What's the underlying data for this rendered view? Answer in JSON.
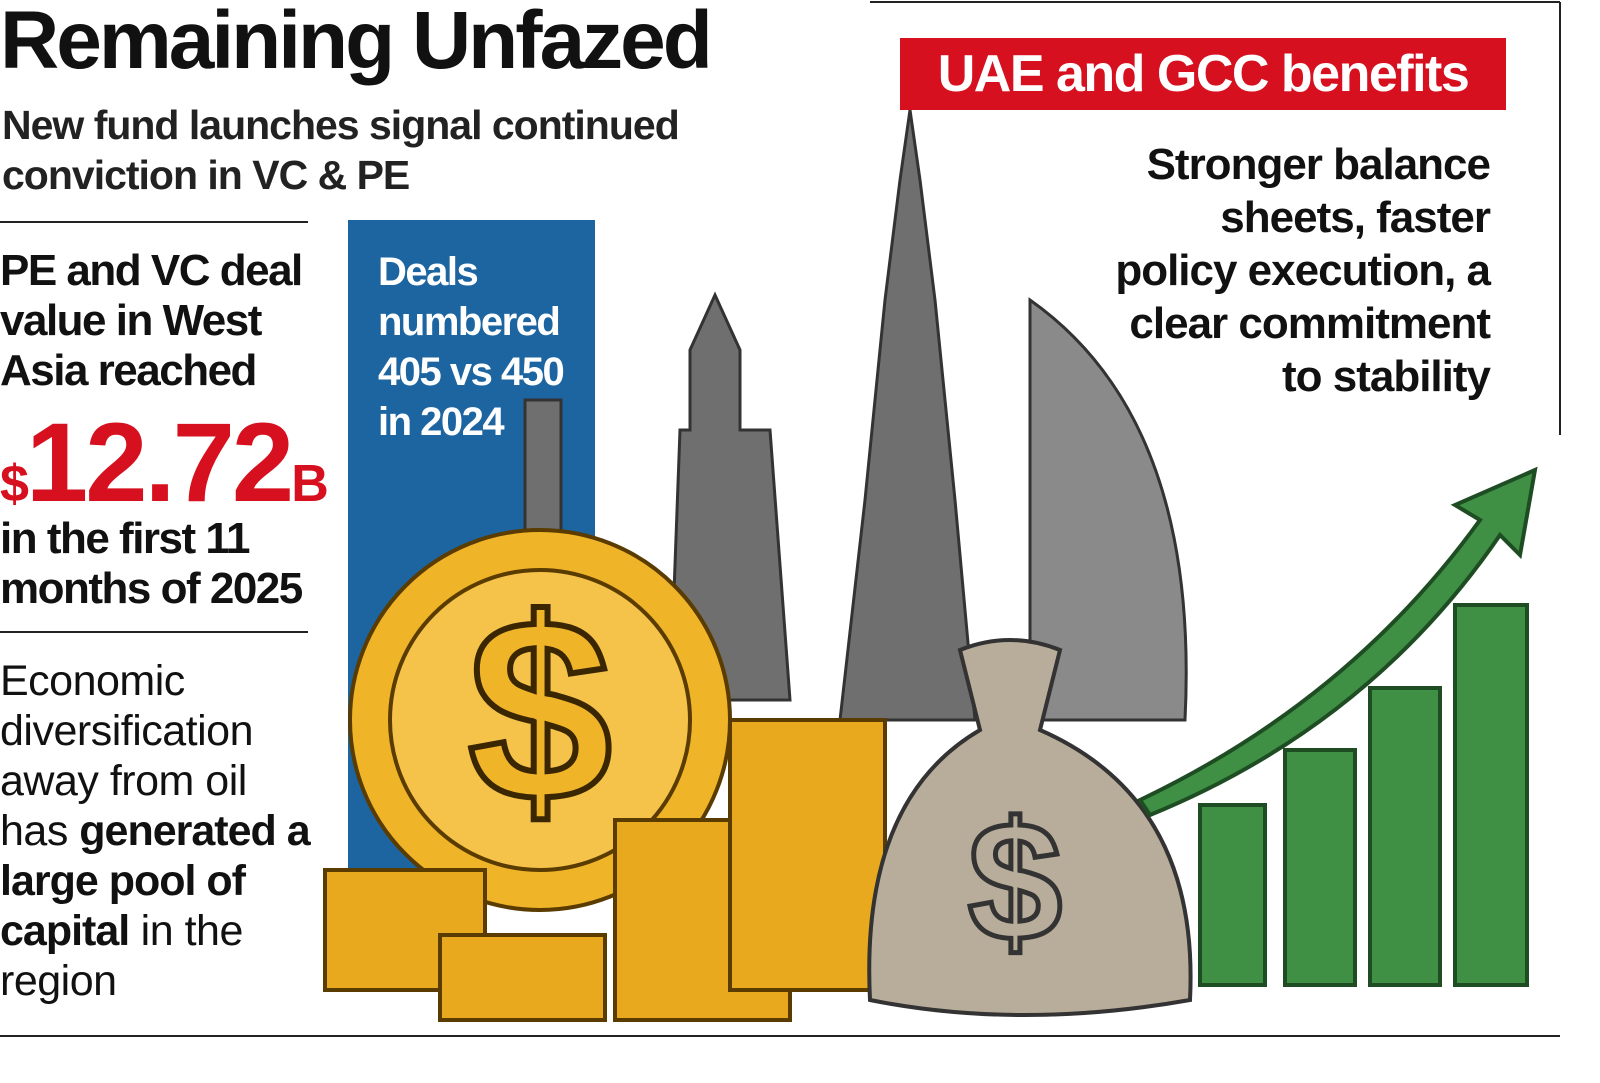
{
  "header": {
    "title": "Remaining Unfazed",
    "subtitle": [
      "New fund launches signal continued",
      "conviction in VC & PE"
    ]
  },
  "left_panel": {
    "lead": [
      "PE and VC deal",
      "value in West",
      "Asia reached"
    ],
    "amount": {
      "currency": "$",
      "number": "12.72",
      "unit": "B"
    },
    "period": [
      "in the first 11",
      "months of 2025"
    ],
    "note": [
      [
        {
          "text": "Economic"
        }
      ],
      [
        {
          "text": "diversification"
        }
      ],
      [
        {
          "text": "away from oil"
        }
      ],
      [
        {
          "text": "has "
        },
        {
          "text": "generated a",
          "bold": true
        }
      ],
      [
        {
          "text": "large pool of",
          "bold": true
        }
      ],
      [
        {
          "text": "capital",
          "bold": true
        },
        {
          "text": " in the"
        }
      ],
      [
        {
          "text": "region"
        }
      ]
    ]
  },
  "deals_box": {
    "lines": [
      "Deals",
      "numbered",
      "405 vs 450",
      "in 2024"
    ]
  },
  "benefits": {
    "title": "UAE and GCC benefits",
    "text": [
      "Stronger balance",
      "sheets, faster",
      "policy execution, a",
      "clear commitment",
      "to stability"
    ]
  }
}
